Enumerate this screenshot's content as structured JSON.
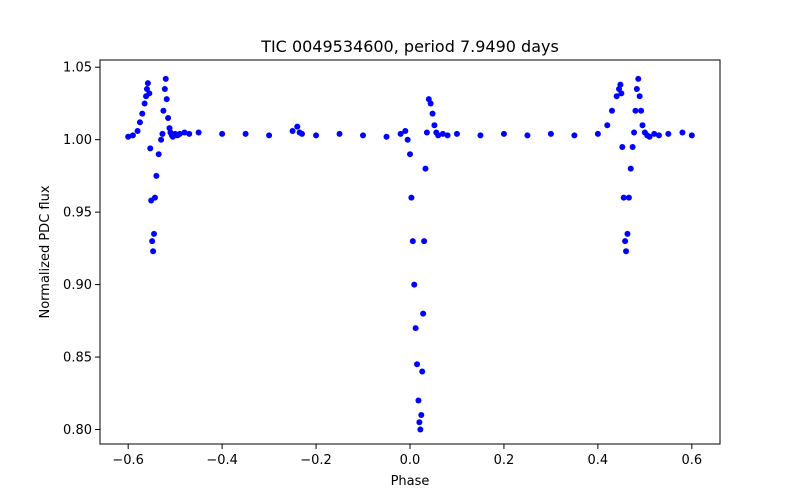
{
  "chart_data": {
    "type": "scatter",
    "title": "TIC 0049534600, period 7.9490 days",
    "xlabel": "Phase",
    "ylabel": "Normalized PDC flux",
    "xlim": [
      -0.66,
      0.66
    ],
    "ylim": [
      0.79,
      1.055
    ],
    "xticks": [
      -0.6,
      -0.4,
      -0.2,
      0.0,
      0.2,
      0.4,
      0.6
    ],
    "xtick_labels": [
      "−0.6",
      "−0.4",
      "−0.2",
      "0.0",
      "0.2",
      "0.4",
      "0.6"
    ],
    "yticks": [
      0.8,
      0.85,
      0.9,
      0.95,
      1.0,
      1.05
    ],
    "ytick_labels": [
      "0.80",
      "0.85",
      "0.90",
      "0.95",
      "1.00",
      "1.05"
    ],
    "grid": false,
    "marker_color": "#0000ff",
    "series": [
      {
        "x": [
          -0.6,
          -0.59,
          -0.58,
          -0.575,
          -0.57,
          -0.565,
          -0.562,
          -0.56,
          -0.558,
          -0.555,
          -0.553,
          -0.551,
          -0.549,
          -0.547,
          -0.545,
          -0.543,
          -0.54,
          -0.535,
          -0.53,
          -0.527,
          -0.525,
          -0.522,
          -0.52,
          -0.518,
          -0.515,
          -0.512,
          -0.51,
          -0.507,
          -0.505,
          -0.502,
          -0.5,
          -0.495,
          -0.49,
          -0.48,
          -0.47,
          -0.45,
          -0.4,
          -0.35,
          -0.3,
          -0.25,
          -0.24,
          -0.235,
          -0.23,
          -0.2,
          -0.15,
          -0.1,
          -0.05,
          -0.02,
          -0.01,
          -0.005,
          0.0,
          0.003,
          0.006,
          0.009,
          0.012,
          0.015,
          0.018,
          0.02,
          0.022,
          0.024,
          0.026,
          0.028,
          0.03,
          0.033,
          0.036,
          0.04,
          0.044,
          0.048,
          0.052,
          0.056,
          0.06,
          0.07,
          0.08,
          0.1,
          0.15,
          0.2,
          0.25,
          0.3,
          0.35,
          0.4,
          0.42,
          0.43,
          0.44,
          0.445,
          0.448,
          0.45,
          0.452,
          0.455,
          0.458,
          0.46,
          0.463,
          0.466,
          0.47,
          0.474,
          0.477,
          0.48,
          0.483,
          0.486,
          0.489,
          0.492,
          0.495,
          0.5,
          0.505,
          0.51,
          0.52,
          0.53,
          0.55,
          0.58,
          0.6
        ],
        "y": [
          1.002,
          1.003,
          1.006,
          1.012,
          1.018,
          1.025,
          1.03,
          1.035,
          1.039,
          1.032,
          0.994,
          0.958,
          0.93,
          0.923,
          0.935,
          0.96,
          0.975,
          0.99,
          1.0,
          1.004,
          1.02,
          1.035,
          1.042,
          1.028,
          1.015,
          1.008,
          1.005,
          1.003,
          1.002,
          1.003,
          1.004,
          1.003,
          1.004,
          1.005,
          1.004,
          1.005,
          1.004,
          1.004,
          1.003,
          1.006,
          1.009,
          1.005,
          1.004,
          1.003,
          1.004,
          1.003,
          1.002,
          1.004,
          1.006,
          1.0,
          0.99,
          0.96,
          0.93,
          0.9,
          0.87,
          0.845,
          0.82,
          0.805,
          0.8,
          0.81,
          0.84,
          0.88,
          0.93,
          0.98,
          1.005,
          1.028,
          1.025,
          1.018,
          1.01,
          1.005,
          1.003,
          1.004,
          1.003,
          1.004,
          1.003,
          1.004,
          1.003,
          1.004,
          1.003,
          1.004,
          1.01,
          1.02,
          1.03,
          1.035,
          1.038,
          1.032,
          0.995,
          0.96,
          0.93,
          0.923,
          0.935,
          0.96,
          0.98,
          0.995,
          1.005,
          1.02,
          1.035,
          1.042,
          1.03,
          1.02,
          1.01,
          1.005,
          1.003,
          1.002,
          1.004,
          1.003,
          1.004,
          1.005,
          1.003
        ]
      }
    ]
  }
}
